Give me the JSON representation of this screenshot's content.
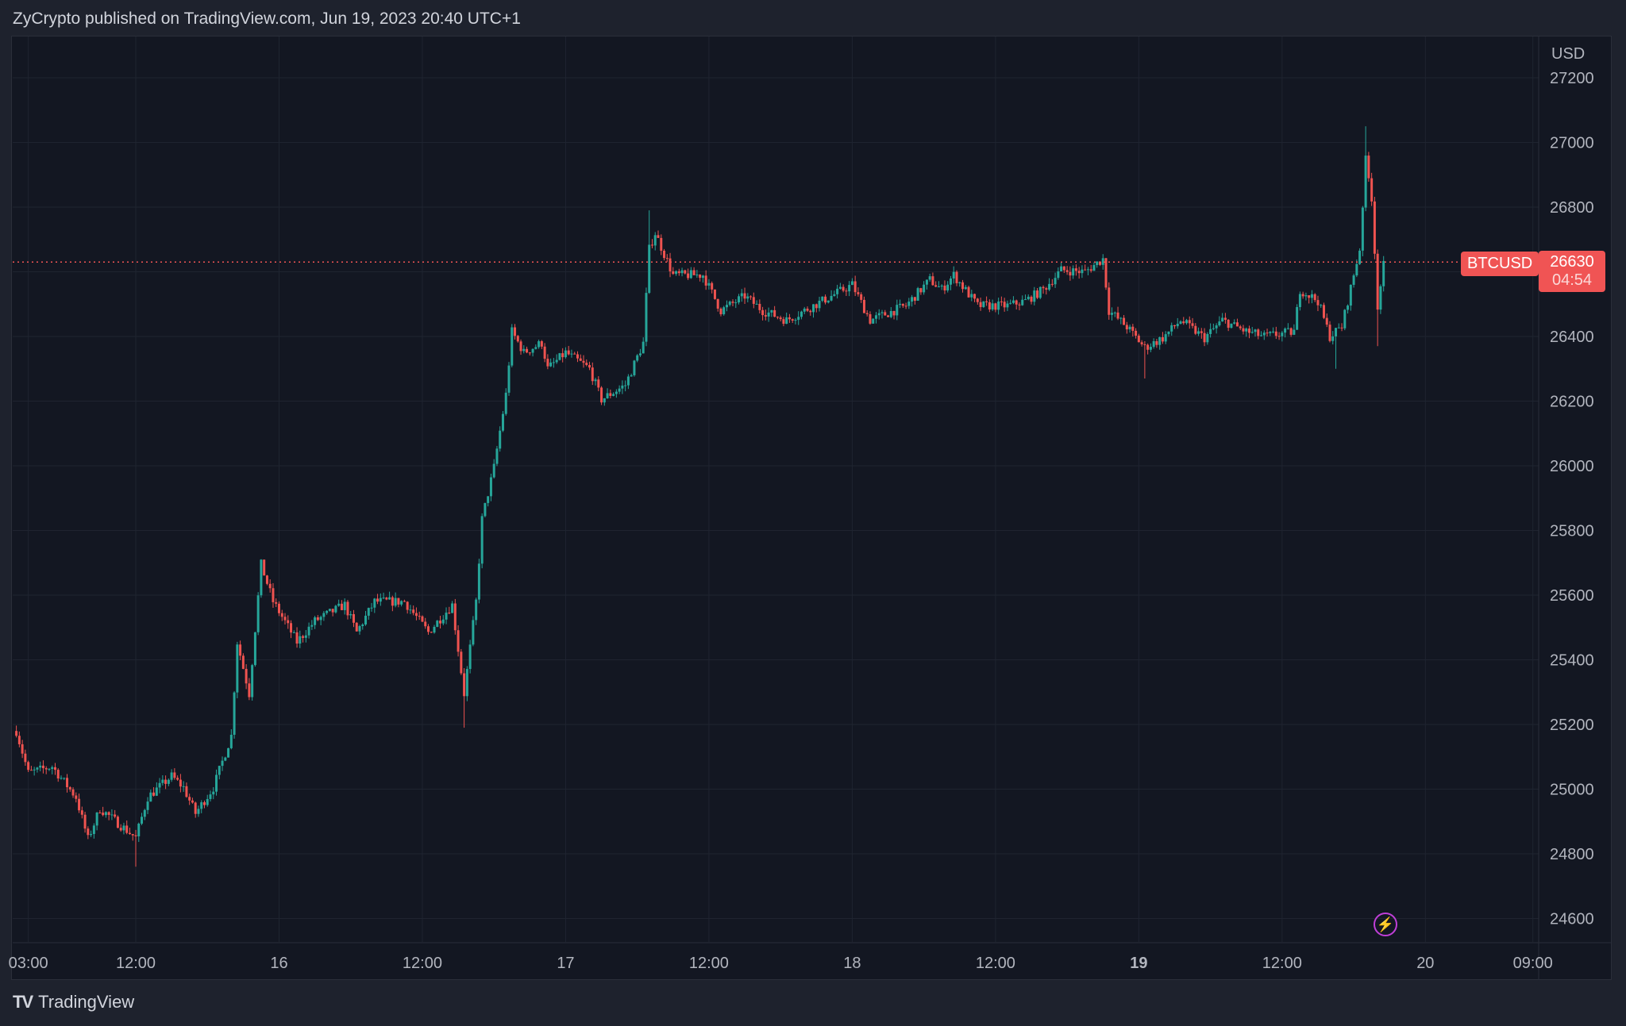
{
  "header": {
    "text": "ZyCrypto published on TradingView.com, Jun 19, 2023 20:40 UTC+1"
  },
  "footer": {
    "brand": "TradingView",
    "logo": "TV"
  },
  "price_axis": {
    "currency": "USD"
  },
  "last_price": {
    "symbol": "BTCUSD",
    "price": "26630",
    "countdown": "04:54",
    "color": "#f05454"
  },
  "colors": {
    "up": "#26a69a",
    "down": "#ef5350",
    "background": "#131722",
    "grid": "#1f2430",
    "alert_icon": "#c03fd8"
  },
  "icons": {
    "alert": "lightning-icon"
  },
  "chart_data": {
    "type": "candlestick",
    "symbol": "BTCUSD",
    "ylim": [
      24550,
      27300
    ],
    "yticks": [
      24600,
      24800,
      25000,
      25200,
      25400,
      25600,
      25800,
      26000,
      26200,
      26400,
      26600,
      26800,
      27000,
      27200
    ],
    "xlim": [
      "2023-06-15T00:40",
      "2023-06-20T10:00"
    ],
    "xticks": [
      {
        "t": "2023-06-15T03:00",
        "label": "03:00"
      },
      {
        "t": "2023-06-15T12:00",
        "label": "12:00"
      },
      {
        "t": "2023-06-16T00:00",
        "label": "16"
      },
      {
        "t": "2023-06-16T12:00",
        "label": "12:00"
      },
      {
        "t": "2023-06-17T00:00",
        "label": "17"
      },
      {
        "t": "2023-06-17T12:00",
        "label": "12:00"
      },
      {
        "t": "2023-06-18T00:00",
        "label": "18"
      },
      {
        "t": "2023-06-18T12:00",
        "label": "12:00"
      },
      {
        "t": "2023-06-19T00:00",
        "label": "19",
        "bold": true
      },
      {
        "t": "2023-06-19T12:00",
        "label": "12:00"
      },
      {
        "t": "2023-06-20T00:00",
        "label": "20"
      },
      {
        "t": "2023-06-20T09:00",
        "label": "09:00"
      }
    ],
    "grid": true,
    "close_path": [
      [
        "2023-06-15T02:00",
        25180
      ],
      [
        "2023-06-15T03:00",
        25050
      ],
      [
        "2023-06-15T05:00",
        25070
      ],
      [
        "2023-06-15T07:00",
        24975
      ],
      [
        "2023-06-15T08:00",
        24845
      ],
      [
        "2023-06-15T09:00",
        24940
      ],
      [
        "2023-06-15T11:00",
        24880
      ],
      [
        "2023-06-15T12:00",
        24850
      ],
      [
        "2023-06-15T13:00",
        24975
      ],
      [
        "2023-06-15T15:00",
        25040
      ],
      [
        "2023-06-15T16:00",
        25005
      ],
      [
        "2023-06-15T17:00",
        24925
      ],
      [
        "2023-06-15T18:30",
        25005
      ],
      [
        "2023-06-15T20:00",
        25165
      ],
      [
        "2023-06-15T20:30",
        25455
      ],
      [
        "2023-06-15T21:30",
        25295
      ],
      [
        "2023-06-15T22:30",
        25695
      ],
      [
        "2023-06-15T23:30",
        25580
      ],
      [
        "2023-06-16T01:30",
        25455
      ],
      [
        "2023-06-16T03:00",
        25520
      ],
      [
        "2023-06-16T05:30",
        25570
      ],
      [
        "2023-06-16T06:30",
        25485
      ],
      [
        "2023-06-16T08:00",
        25580
      ],
      [
        "2023-06-16T10:30",
        25580
      ],
      [
        "2023-06-16T12:30",
        25485
      ],
      [
        "2023-06-16T14:30",
        25570
      ],
      [
        "2023-06-16T15:30",
        25295
      ],
      [
        "2023-06-16T16:30",
        25580
      ],
      [
        "2023-06-16T17:00",
        25835
      ],
      [
        "2023-06-16T18:00",
        25995
      ],
      [
        "2023-06-16T19:00",
        26220
      ],
      [
        "2023-06-16T19:30",
        26415
      ],
      [
        "2023-06-16T20:30",
        26350
      ],
      [
        "2023-06-16T22:00",
        26380
      ],
      [
        "2023-06-16T22:30",
        26300
      ],
      [
        "2023-06-17T00:00",
        26350
      ],
      [
        "2023-06-17T02:00",
        26300
      ],
      [
        "2023-06-17T03:00",
        26205
      ],
      [
        "2023-06-17T05:00",
        26250
      ],
      [
        "2023-06-17T06:30",
        26380
      ],
      [
        "2023-06-17T07:00",
        26670
      ],
      [
        "2023-06-17T07:30",
        26720
      ],
      [
        "2023-06-17T09:00",
        26590
      ],
      [
        "2023-06-17T11:30",
        26590
      ],
      [
        "2023-06-17T13:00",
        26480
      ],
      [
        "2023-06-17T15:00",
        26525
      ],
      [
        "2023-06-17T16:30",
        26480
      ],
      [
        "2023-06-17T18:30",
        26450
      ],
      [
        "2023-06-17T21:30",
        26510
      ],
      [
        "2023-06-18T00:00",
        26560
      ],
      [
        "2023-06-18T01:30",
        26450
      ],
      [
        "2023-06-18T04:30",
        26495
      ],
      [
        "2023-06-18T06:30",
        26575
      ],
      [
        "2023-06-18T07:30",
        26545
      ],
      [
        "2023-06-18T08:30",
        26590
      ],
      [
        "2023-06-18T10:30",
        26495
      ],
      [
        "2023-06-18T13:00",
        26495
      ],
      [
        "2023-06-18T14:30",
        26510
      ],
      [
        "2023-06-18T16:00",
        26545
      ],
      [
        "2023-06-18T17:30",
        26605
      ],
      [
        "2023-06-18T19:30",
        26600
      ],
      [
        "2023-06-18T21:00",
        26640
      ],
      [
        "2023-06-18T21:30",
        26480
      ],
      [
        "2023-06-18T23:00",
        26430
      ],
      [
        "2023-06-19T00:30",
        26365
      ],
      [
        "2023-06-19T02:00",
        26395
      ],
      [
        "2023-06-19T03:30",
        26450
      ],
      [
        "2023-06-19T05:30",
        26395
      ],
      [
        "2023-06-19T07:00",
        26450
      ],
      [
        "2023-06-19T09:00",
        26415
      ],
      [
        "2023-06-19T10:30",
        26400
      ],
      [
        "2023-06-19T13:00",
        26415
      ],
      [
        "2023-06-19T13:30",
        26545
      ],
      [
        "2023-06-19T15:00",
        26510
      ],
      [
        "2023-06-19T16:00",
        26400
      ],
      [
        "2023-06-19T17:00",
        26430
      ],
      [
        "2023-06-19T18:00",
        26590
      ],
      [
        "2023-06-19T18:30",
        26670
      ],
      [
        "2023-06-19T19:00",
        26945
      ],
      [
        "2023-06-19T19:30",
        26830
      ],
      [
        "2023-06-19T20:00",
        26495
      ],
      [
        "2023-06-19T20:30",
        26620
      ],
      [
        "2023-06-19T20:40",
        26630
      ]
    ],
    "extreme_wicks": [
      [
        "2023-06-15T12:00",
        24760
      ],
      [
        "2023-06-16T15:30",
        25190
      ],
      [
        "2023-06-17T07:00",
        26790
      ],
      [
        "2023-06-19T00:30",
        26270
      ],
      [
        "2023-06-19T16:30",
        26300
      ],
      [
        "2023-06-19T19:00",
        27050
      ],
      [
        "2023-06-19T20:00",
        26370
      ]
    ]
  }
}
